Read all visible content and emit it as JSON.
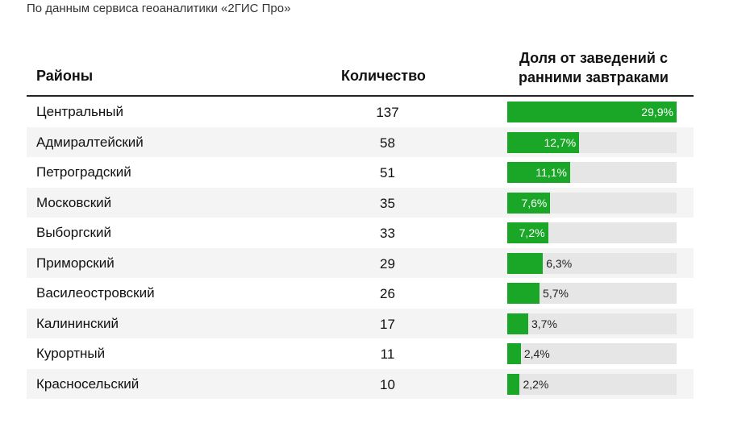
{
  "subtitle": "По данным сервиса геоаналитики «2ГИС Про»",
  "chart_data": {
    "type": "table",
    "columns": [
      "Районы",
      "Количество",
      "Доля от заведений с ранними завтраками"
    ],
    "rows": [
      {
        "district": "Центральный",
        "count": 137,
        "share": 29.9,
        "share_label": "29,9%"
      },
      {
        "district": "Адмиралтейский",
        "count": 58,
        "share": 12.7,
        "share_label": "12,7%"
      },
      {
        "district": "Петроградский",
        "count": 51,
        "share": 11.1,
        "share_label": "11,1%"
      },
      {
        "district": "Московский",
        "count": 35,
        "share": 7.6,
        "share_label": "7,6%"
      },
      {
        "district": "Выборгский",
        "count": 33,
        "share": 7.2,
        "share_label": "7,2%"
      },
      {
        "district": "Приморский",
        "count": 29,
        "share": 6.3,
        "share_label": "6,3%"
      },
      {
        "district": "Василеостровский",
        "count": 26,
        "share": 5.7,
        "share_label": "5,7%"
      },
      {
        "district": "Калининский",
        "count": 17,
        "share": 3.7,
        "share_label": "3,7%"
      },
      {
        "district": "Курортный",
        "count": 11,
        "share": 2.4,
        "share_label": "2,4%"
      },
      {
        "district": "Красносельский",
        "count": 10,
        "share": 2.2,
        "share_label": "2,2%"
      }
    ],
    "bar_max": 29.9,
    "bar_color": "#1aa626",
    "track_color": "#e6e6e6"
  }
}
